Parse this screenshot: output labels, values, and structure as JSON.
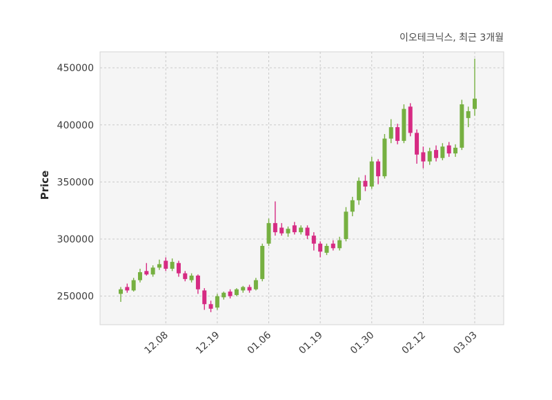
{
  "page": {
    "background": "#ffffff"
  },
  "chart_data": {
    "type": "candlestick",
    "title": "이오테크닉스, 최근 3개월",
    "ylabel": "Price",
    "ylim": [
      225000,
      464000
    ],
    "y_ticks": [
      250000,
      300000,
      350000,
      400000,
      450000
    ],
    "x_tick_labels": [
      "12.08",
      "12.19",
      "01.06",
      "01.19",
      "01.30",
      "02.12",
      "03.03"
    ],
    "x_tick_indices": [
      7,
      15,
      23,
      31,
      39,
      47,
      55
    ],
    "grid": "dashed",
    "legend": "none",
    "up_color": "#76b041",
    "down_color": "#d62b83",
    "plot_bg_color": "#f5f5f5",
    "grid_color": "#c9c9c9",
    "candles": [
      [
        252000,
        258000,
        245000,
        256000
      ],
      [
        258000,
        261000,
        253000,
        255000
      ],
      [
        255000,
        266000,
        254000,
        264000
      ],
      [
        264000,
        274000,
        262000,
        271000
      ],
      [
        272000,
        279000,
        268000,
        269000
      ],
      [
        269000,
        277000,
        267000,
        275000
      ],
      [
        275000,
        282000,
        273000,
        278000
      ],
      [
        281000,
        284000,
        272000,
        274000
      ],
      [
        274000,
        283000,
        272000,
        280000
      ],
      [
        279000,
        281000,
        267000,
        270000
      ],
      [
        270000,
        272000,
        263000,
        265000
      ],
      [
        264000,
        270000,
        262000,
        268000
      ],
      [
        268000,
        269000,
        252000,
        256000
      ],
      [
        255000,
        257000,
        238000,
        243000
      ],
      [
        243000,
        246000,
        236000,
        239000
      ],
      [
        240000,
        252000,
        238000,
        250000
      ],
      [
        249000,
        254000,
        247000,
        253000
      ],
      [
        254000,
        256000,
        248000,
        250000
      ],
      [
        251000,
        257000,
        250000,
        256000
      ],
      [
        255000,
        259000,
        253000,
        258000
      ],
      [
        258000,
        260000,
        253000,
        255000
      ],
      [
        256000,
        266000,
        255000,
        264000
      ],
      [
        265000,
        296000,
        263000,
        294000
      ],
      [
        296000,
        318000,
        294000,
        314000
      ],
      [
        314000,
        333000,
        303000,
        306000
      ],
      [
        310000,
        314000,
        303000,
        305000
      ],
      [
        305000,
        311000,
        302000,
        309000
      ],
      [
        312000,
        315000,
        304000,
        306000
      ],
      [
        306000,
        312000,
        304000,
        310000
      ],
      [
        310000,
        312000,
        300000,
        303000
      ],
      [
        303000,
        306000,
        290000,
        296000
      ],
      [
        296000,
        298000,
        284000,
        289000
      ],
      [
        288000,
        296000,
        286000,
        294000
      ],
      [
        296000,
        299000,
        290000,
        292000
      ],
      [
        292000,
        302000,
        290000,
        299000
      ],
      [
        300000,
        328000,
        298000,
        324000
      ],
      [
        324000,
        337000,
        320000,
        334000
      ],
      [
        334000,
        354000,
        330000,
        351000
      ],
      [
        351000,
        356000,
        342000,
        346000
      ],
      [
        346000,
        372000,
        344000,
        368000
      ],
      [
        368000,
        370000,
        348000,
        355000
      ],
      [
        355000,
        392000,
        353000,
        388000
      ],
      [
        388000,
        405000,
        384000,
        398000
      ],
      [
        398000,
        401000,
        383000,
        386000
      ],
      [
        386000,
        418000,
        384000,
        414000
      ],
      [
        416000,
        419000,
        390000,
        393000
      ],
      [
        393000,
        396000,
        366000,
        374000
      ],
      [
        376000,
        381000,
        362000,
        368000
      ],
      [
        368000,
        380000,
        365000,
        377000
      ],
      [
        378000,
        382000,
        368000,
        371000
      ],
      [
        371000,
        384000,
        369000,
        381000
      ],
      [
        382000,
        385000,
        372000,
        375000
      ],
      [
        375000,
        383000,
        372000,
        380000
      ],
      [
        380000,
        422000,
        378000,
        418000
      ],
      [
        406000,
        416000,
        398000,
        412000
      ],
      [
        414000,
        458000,
        408000,
        423000
      ]
    ]
  }
}
